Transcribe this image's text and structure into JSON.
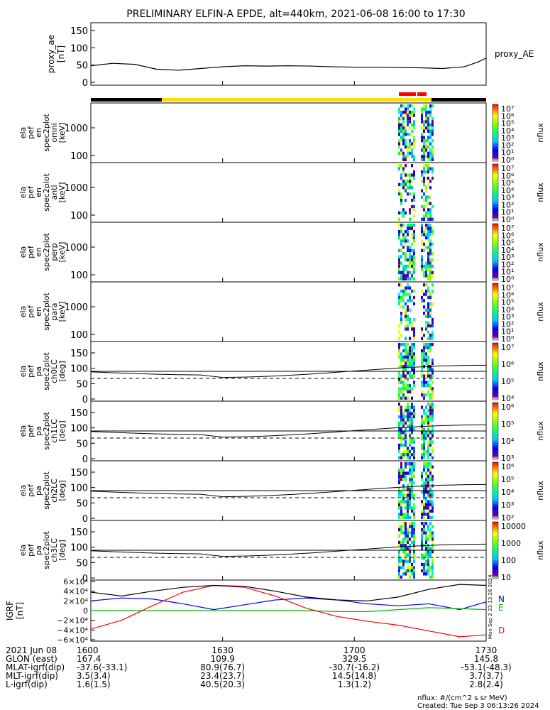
{
  "title": "PRELIMINARY ELFIN-A EPDE, alt=440km, 2021-06-08 16:00 to 17:30",
  "time_axis": {
    "start": "16:00",
    "end": "17:30",
    "tick_labels": [
      "1600",
      "1630",
      "1700",
      "1730"
    ]
  },
  "chart_data": [
    {
      "type": "line",
      "panel": "proxy_ae",
      "ylabel": [
        "proxy_ae",
        "[nT]"
      ],
      "legend": "proxy_AE",
      "yticks": [
        "150",
        "100",
        "50",
        "0"
      ],
      "ylim": [
        0,
        160
      ],
      "x_minutes": [
        0,
        5,
        10,
        15,
        20,
        25,
        30,
        35,
        40,
        45,
        50,
        55,
        60,
        65,
        70,
        75,
        80,
        85,
        88,
        90
      ],
      "values": [
        48,
        55,
        52,
        38,
        35,
        40,
        45,
        48,
        47,
        48,
        47,
        45,
        44,
        44,
        43,
        42,
        40,
        45,
        58,
        70
      ]
    },
    {
      "type": "heatmap",
      "panel": "en_spec2plot_omni",
      "ylabel": [
        "ela",
        "pef",
        "en",
        "spec2plot",
        "omni",
        "[keV]"
      ],
      "yticks": [
        "1000",
        "100"
      ],
      "colorbar_ticks": [
        "10⁷",
        "10⁶",
        "10⁵",
        "10⁴",
        "10³",
        "10²",
        "10¹",
        "10⁰"
      ],
      "colorbar_label": "nflux"
    },
    {
      "type": "heatmap",
      "panel": "en_spec2plot_anti",
      "ylabel": [
        "ela",
        "pef",
        "en",
        "spec2plot",
        "anti",
        "[keV]"
      ],
      "yticks": [
        "1000",
        "100"
      ],
      "colorbar_ticks": [
        "10⁷",
        "10⁶",
        "10⁵",
        "10⁴",
        "10³",
        "10²",
        "10¹",
        "10⁰"
      ],
      "colorbar_label": "nflux"
    },
    {
      "type": "heatmap",
      "panel": "en_spec2plot_perp",
      "ylabel": [
        "ela",
        "pef",
        "en",
        "spec2plot",
        "perp",
        "[keV]"
      ],
      "yticks": [
        "1000",
        "100"
      ],
      "colorbar_ticks": [
        "10⁷",
        "10⁶",
        "10⁵",
        "10⁴",
        "10³",
        "10²",
        "10¹",
        "10⁰"
      ],
      "colorbar_label": "nflux"
    },
    {
      "type": "heatmap",
      "panel": "en_spec2plot_para",
      "ylabel": [
        "ela",
        "pef",
        "en",
        "spec2plot",
        "para",
        "[keV]"
      ],
      "yticks": [
        "1000",
        "100"
      ],
      "colorbar_ticks": [
        "10⁷",
        "10⁶",
        "10⁵",
        "10⁴",
        "10³",
        "10²",
        "10¹",
        "10⁰"
      ],
      "colorbar_label": "nflux"
    },
    {
      "type": "heatmap",
      "panel": "pa_spec2plot_ch0LC",
      "ylabel": [
        "ela",
        "pef",
        "pa",
        "spec2plot",
        "ch0LC",
        "[deg]"
      ],
      "yticks": [
        "150",
        "100",
        "50",
        "0"
      ],
      "colorbar_ticks": [
        "10⁷",
        "10⁶",
        "10⁵",
        "10⁴"
      ],
      "colorbar_label": "nflux"
    },
    {
      "type": "heatmap",
      "panel": "pa_spec2plot_ch1LC",
      "ylabel": [
        "ela",
        "pef",
        "pa",
        "spec2plot",
        "ch1LC",
        "[deg]"
      ],
      "yticks": [
        "150",
        "100",
        "50",
        "0"
      ],
      "colorbar_ticks": [
        "10⁶",
        "10⁵",
        "10⁴",
        "10³"
      ],
      "colorbar_label": "nflux"
    },
    {
      "type": "heatmap",
      "panel": "pa_spec2plot_ch2LC",
      "ylabel": [
        "ela",
        "pef",
        "pa",
        "spec2plot",
        "ch2LC",
        "[deg]"
      ],
      "yticks": [
        "150",
        "100",
        "50",
        "0"
      ],
      "colorbar_ticks": [
        "10⁶",
        "10⁵",
        "10⁴",
        "10³",
        "10²"
      ],
      "colorbar_label": "nflux"
    },
    {
      "type": "heatmap",
      "panel": "pa_spec2plot_ch3LC",
      "ylabel": [
        "ela",
        "pef",
        "pa",
        "spec2plot",
        "ch3LC",
        "[deg]"
      ],
      "yticks": [
        "150",
        "100",
        "50",
        "0"
      ],
      "colorbar_ticks": [
        "10000",
        "1000",
        "100",
        "10"
      ],
      "colorbar_label": "nflux"
    },
    {
      "type": "line",
      "panel": "IGRF",
      "ylabel": [
        "IGRF",
        "[nT]"
      ],
      "yticks": [
        "6×10⁴",
        "4×10⁴",
        "2×10⁴",
        "0",
        "−2×10⁴",
        "−4×10⁴",
        "−6×10⁴"
      ],
      "ylim": [
        -60000,
        60000
      ],
      "x_minutes": [
        0,
        7,
        14,
        21,
        28,
        35,
        42,
        49,
        56,
        63,
        70,
        77,
        84,
        90
      ],
      "series": [
        {
          "name": "N",
          "color": "#0000ff",
          "values": [
            20000,
            26000,
            24000,
            14000,
            2000,
            12000,
            22000,
            26000,
            22000,
            14000,
            10000,
            14000,
            2000,
            18000
          ]
        },
        {
          "name": "E",
          "color": "#00bb00",
          "values": [
            0,
            0,
            0,
            0,
            0,
            0,
            0,
            0,
            -2000,
            -2000,
            2000,
            6000,
            4000,
            2000
          ]
        },
        {
          "name": "D",
          "color": "#ff0000",
          "values": [
            -38000,
            -20000,
            10000,
            38000,
            52000,
            48000,
            30000,
            5000,
            -12000,
            -22000,
            -30000,
            -42000,
            -54000,
            -50000
          ]
        },
        {
          "name": "",
          "color": "#000000",
          "values": [
            38000,
            30000,
            40000,
            48000,
            52000,
            50000,
            40000,
            28000,
            22000,
            20000,
            28000,
            44000,
            54000,
            52000
          ]
        }
      ]
    }
  ],
  "ephemeris": {
    "rows": [
      {
        "label": "2021 Jun 08",
        "values": [
          "1600",
          "1630",
          "1700",
          "1730"
        ]
      },
      {
        "label": "GLON (east)",
        "values": [
          "167.4",
          "109.9",
          "329.5",
          "145.8"
        ]
      },
      {
        "label": "MLAT-igrf(dip)",
        "values": [
          "-37.6(-33.1)",
          "80.9(76.7)",
          "-30.7(-16.2)",
          "-53.1(-48.3)"
        ]
      },
      {
        "label": "MLT-igrf(dip)",
        "values": [
          "3.5(3.4)",
          "23.4(23.7)",
          "14.5(14.8)",
          "3.7(3.7)"
        ]
      },
      {
        "label": "L-igrf(dip)",
        "values": [
          "1.6(1.5)",
          "40.5(20.3)",
          "1.3(1.2)",
          "2.8(2.4)"
        ]
      }
    ]
  },
  "footer": {
    "units": "nflux: #/(cm^2 s sr MeV)",
    "created": "Created: Tue Sep  3 06:13:26 2024",
    "side_stamp": "Mon Sep  2 23:13:26 2024"
  },
  "colors": {
    "orbit_bar_black": "#000000",
    "orbit_bar_yellow": "#ffdd00",
    "science_zone_red": "#ff0000"
  }
}
